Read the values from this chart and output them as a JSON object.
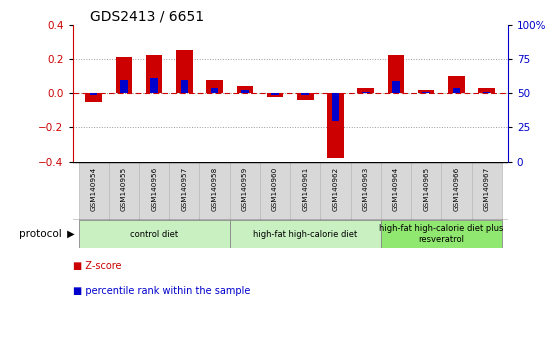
{
  "title": "GDS2413 / 6651",
  "samples": [
    "GSM140954",
    "GSM140955",
    "GSM140956",
    "GSM140957",
    "GSM140958",
    "GSM140959",
    "GSM140960",
    "GSM140961",
    "GSM140962",
    "GSM140963",
    "GSM140964",
    "GSM140965",
    "GSM140966",
    "GSM140967"
  ],
  "zscore": [
    -0.05,
    0.21,
    0.225,
    0.25,
    0.075,
    0.04,
    -0.02,
    -0.04,
    -0.38,
    0.03,
    0.225,
    0.02,
    0.1,
    0.03
  ],
  "percentile_scaled": [
    -0.01,
    0.08,
    0.09,
    0.08,
    0.03,
    0.02,
    -0.01,
    -0.01,
    -0.16,
    0.01,
    0.07,
    0.01,
    0.03,
    0.01
  ],
  "groups": [
    {
      "label": "control diet",
      "start": 0,
      "end": 4,
      "color": "#c8f0c0"
    },
    {
      "label": "high-fat high-calorie diet",
      "start": 5,
      "end": 9,
      "color": "#c8f0c0"
    },
    {
      "label": "high-fat high-calorie diet plus\nresveratrol",
      "start": 10,
      "end": 13,
      "color": "#90e870"
    }
  ],
  "group_starts": [
    0,
    5,
    10
  ],
  "group_ends": [
    4,
    9,
    13
  ],
  "red_color": "#cc0000",
  "blue_color": "#0000cc",
  "ylim": [
    -0.4,
    0.4
  ],
  "right_ylim": [
    0,
    100
  ],
  "right_yticks": [
    0,
    25,
    50,
    75,
    100
  ],
  "right_yticklabels": [
    "0",
    "25",
    "50",
    "75",
    "100%"
  ],
  "left_yticks": [
    -0.4,
    -0.2,
    0.0,
    0.2,
    0.4
  ],
  "background_color": "#ffffff",
  "title_fontsize": 10,
  "tick_fontsize": 7.5,
  "protocol_label": "protocol",
  "legend_zscore": "Z-score",
  "legend_percentile": "percentile rank within the sample"
}
